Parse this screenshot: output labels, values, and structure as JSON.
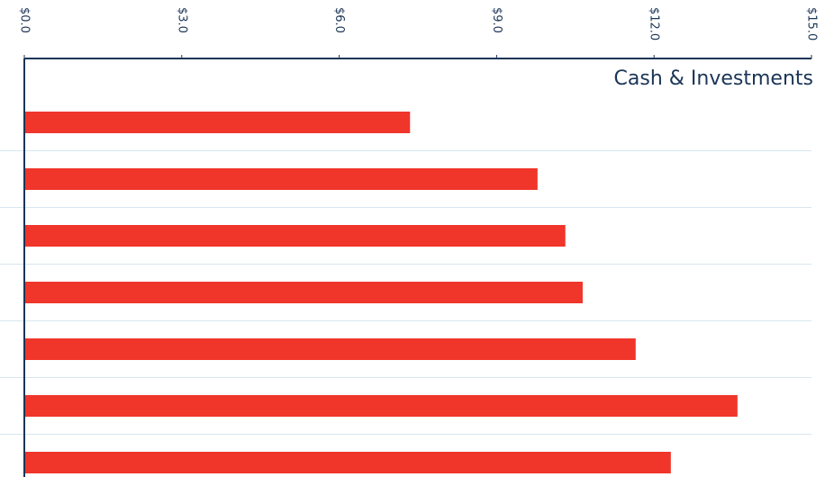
{
  "chart_data": {
    "type": "bar",
    "orientation": "horizontal",
    "title": "Cash & Investments",
    "categories": [
      null,
      null,
      null,
      null,
      null,
      null,
      null
    ],
    "values": [
      7.35,
      9.78,
      10.31,
      10.64,
      11.65,
      13.59,
      12.32
    ],
    "color": "#f0352b",
    "xlim": [
      0,
      15
    ],
    "xticks": [
      {
        "value": 0,
        "label": "$0.0"
      },
      {
        "value": 3,
        "label": "$3.0"
      },
      {
        "value": 6,
        "label": "$6.0"
      },
      {
        "value": 9,
        "label": "$9.0"
      },
      {
        "value": 12,
        "label": "$12.0"
      },
      {
        "value": 15,
        "label": "$15.0"
      }
    ]
  }
}
